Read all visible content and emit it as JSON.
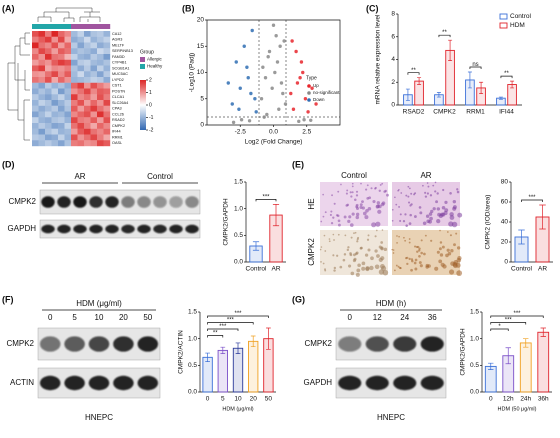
{
  "panels": [
    "(A)",
    "(B)",
    "(C)",
    "(D)",
    "(E)",
    "(F)",
    "(G)"
  ],
  "chart_data": [
    {
      "type": "heatmap",
      "rows": [
        "CA12",
        "AGR3",
        "MELTF",
        "SERPINB13",
        "FAM3D",
        "CYP4B1",
        "SCGB1A1",
        "MUC5AC",
        "LYPD2",
        "CST1",
        "POSTN",
        "CLCA1",
        "SLC26A4",
        "CPA3",
        "CCL26",
        "RSAD2",
        "CMPK2",
        "IFI44",
        "RRM1",
        "OASL"
      ],
      "values": [
        [
          1.6,
          1.9,
          1.2,
          2.0,
          1.4,
          1.1,
          -0.9,
          -0.6,
          -1.2,
          -0.8,
          -0.7,
          -1.0
        ],
        [
          1.2,
          1.5,
          1.8,
          1.0,
          1.7,
          0.8,
          -1.1,
          -0.9,
          -0.5,
          -1.0,
          -0.8,
          -0.6
        ],
        [
          2.0,
          1.3,
          1.1,
          1.6,
          0.9,
          1.4,
          -0.7,
          -1.2,
          -0.8,
          -0.6,
          -1.1,
          -0.9
        ],
        [
          1.1,
          1.7,
          1.4,
          0.9,
          1.5,
          1.3,
          -1.0,
          -0.8,
          -0.9,
          -1.1,
          -0.5,
          -0.7
        ],
        [
          1.4,
          1.0,
          1.9,
          1.3,
          1.2,
          0.7,
          -0.6,
          -1.0,
          -1.1,
          -0.7,
          -0.9,
          -1.3
        ],
        [
          0.9,
          1.2,
          1.0,
          1.5,
          1.8,
          1.6,
          -1.2,
          -0.7,
          -0.6,
          -0.9,
          -1.0,
          -0.8
        ],
        [
          1.5,
          1.8,
          0.8,
          1.1,
          1.0,
          1.2,
          -0.8,
          -1.1,
          -0.7,
          -1.2,
          -0.6,
          -1.0
        ],
        [
          1.0,
          0.9,
          1.3,
          1.7,
          1.1,
          1.5,
          -0.9,
          -0.5,
          -1.0,
          -0.8,
          -1.2,
          -0.7
        ],
        [
          1.3,
          1.1,
          1.6,
          0.8,
          1.4,
          1.0,
          -1.0,
          -0.9,
          -0.8,
          -0.6,
          -0.7,
          -1.1
        ],
        [
          -0.9,
          -1.2,
          -0.7,
          -1.0,
          -0.8,
          -1.1,
          1.4,
          1.8,
          1.0,
          1.6,
          1.2,
          0.9
        ],
        [
          -1.1,
          -0.8,
          -1.0,
          -0.6,
          -1.3,
          -0.9,
          1.0,
          1.3,
          1.7,
          1.1,
          1.5,
          1.4
        ],
        [
          -0.7,
          -1.0,
          -1.2,
          -0.9,
          -0.6,
          -1.0,
          1.8,
          1.1,
          1.3,
          0.9,
          1.6,
          1.2
        ],
        [
          -1.0,
          -0.6,
          -0.8,
          -1.3,
          -1.0,
          -0.7,
          1.2,
          1.6,
          0.9,
          1.4,
          1.0,
          1.7
        ],
        [
          -0.8,
          -1.1,
          -0.9,
          -0.7,
          -1.2,
          -0.8,
          1.5,
          0.9,
          1.4,
          1.8,
          1.3,
          1.0
        ],
        [
          -1.2,
          -0.9,
          -0.6,
          -1.0,
          -0.9,
          -1.2,
          1.1,
          1.4,
          1.6,
          1.0,
          1.9,
          1.3
        ],
        [
          -0.6,
          -1.0,
          -1.1,
          -0.8,
          -0.7,
          -1.0,
          1.7,
          1.2,
          1.1,
          1.5,
          0.9,
          1.6
        ],
        [
          -1.0,
          -0.7,
          -0.9,
          -1.2,
          -1.1,
          -0.6,
          1.3,
          1.7,
          1.2,
          0.8,
          1.4,
          1.1
        ],
        [
          -0.9,
          -1.3,
          -0.8,
          -0.6,
          -1.0,
          -0.9,
          0.9,
          1.5,
          1.8,
          1.3,
          1.1,
          1.4
        ],
        [
          -0.7,
          -0.8,
          -1.2,
          -1.1,
          -0.6,
          -1.0,
          1.6,
          1.0,
          1.3,
          1.7,
          1.2,
          0.8
        ],
        [
          -1.1,
          -0.9,
          -0.7,
          -0.9,
          -1.2,
          -0.8,
          1.2,
          1.3,
          1.0,
          1.1,
          1.7,
          1.5
        ]
      ],
      "column_groups": [
        1,
        1,
        1,
        1,
        1,
        1,
        0,
        0,
        0,
        0,
        0,
        0
      ],
      "legend_title": "Group",
      "groups": [
        {
          "name": "Allergic",
          "color": "#a0559f"
        },
        {
          "name": "Healthy",
          "color": "#22a6a8"
        }
      ],
      "clim": [
        -2,
        2
      ],
      "cticks": [
        2,
        1,
        0,
        -1,
        -2
      ]
    },
    {
      "type": "scatter",
      "xlabel": "Log2 (Fold Change)",
      "ylabel": "-Log10 (Padj)",
      "xlim": [
        -5,
        5
      ],
      "xticks": [
        -2.5,
        {
          "value": 0,
          "label": "0.0"
        },
        2.5
      ],
      "ylim": [
        0,
        20
      ],
      "yticks": [
        0,
        5,
        10,
        15,
        20
      ],
      "legend_title": "Type",
      "series": [
        {
          "name": "Up",
          "color": "#e8252b",
          "x": [
            1.5,
            1.8,
            2.1,
            2.4,
            2.9,
            1.4,
            2.2,
            3.2,
            1.7,
            2.6,
            1.3,
            2.0
          ],
          "y": [
            3,
            8,
            12,
            5,
            7,
            16,
            10,
            4,
            14,
            2.5,
            6,
            9
          ]
        },
        {
          "name": "no-significant",
          "color": "#888888",
          "x": [
            -0.9,
            -0.6,
            -0.3,
            0,
            0.3,
            0.6,
            0.9,
            -0.5,
            0.2,
            0.7,
            -0.8,
            0.4,
            -0.1,
            0.5,
            -2.4,
            2.3,
            -1.8,
            1.9,
            -3,
            2.8,
            -0.4,
            0.1,
            0.8,
            -0.7
          ],
          "y": [
            5,
            9,
            14,
            19,
            12,
            8,
            4,
            2,
            17,
            6,
            11,
            3,
            7,
            15,
            1,
            1,
            0.8,
            0.7,
            0.5,
            0.9,
            13,
            10,
            16,
            1.5
          ]
        },
        {
          "name": "Down",
          "color": "#2f6db3",
          "x": [
            -3.1,
            -2.8,
            -2.5,
            -2.2,
            -1.9,
            -1.6,
            -1.4,
            -2.0,
            -2.6,
            -1.7,
            -1.3,
            -3.4
          ],
          "y": [
            4,
            12,
            7,
            15,
            9,
            18,
            5,
            11,
            3,
            6,
            2.5,
            8
          ]
        }
      ]
    },
    {
      "type": "bar",
      "ylabel": "mRNA relative expression level",
      "categories": [
        "RSAD2",
        "CMPK2",
        "RRM1",
        "IFI44"
      ],
      "ylim": [
        0,
        8
      ],
      "yticks": [
        0,
        2,
        4,
        6,
        8
      ],
      "series": [
        {
          "name": "Control",
          "color": "#3a6fd8",
          "values": [
            0.9,
            0.9,
            2.2,
            0.6
          ],
          "errors": [
            0.5,
            0.2,
            0.7,
            0.1
          ]
        },
        {
          "name": "HDM",
          "color": "#e0232b",
          "values": [
            2.1,
            4.8,
            1.5,
            1.8
          ],
          "errors": [
            0.3,
            0.9,
            0.5,
            0.3
          ]
        }
      ],
      "annotations": [
        "**",
        "**",
        "ns",
        "**"
      ]
    },
    {
      "type": "bar",
      "ylabel": "CMPK2/GAPDH",
      "categories": [
        "Control",
        "AR"
      ],
      "values": [
        0.3,
        0.88
      ],
      "errors": [
        0.08,
        0.2
      ],
      "colors": [
        "#3a6fd8",
        "#e0232b"
      ],
      "ylim": [
        0,
        1.5
      ],
      "yticks": [
        {
          "value": 0,
          "label": "0.0"
        },
        0.5,
        {
          "value": 1,
          "label": "1.0"
        },
        1.5
      ],
      "annotations": [
        "***"
      ]
    },
    {
      "type": "bar",
      "ylabel": "CMPK2 (IOD/area)",
      "categories": [
        "Control",
        "AR"
      ],
      "values": [
        25,
        45
      ],
      "errors": [
        7,
        12
      ],
      "colors": [
        "#3a6fd8",
        "#e0232b"
      ],
      "ylim": [
        0,
        80
      ],
      "yticks": [
        0,
        20,
        40,
        60,
        80
      ],
      "annotations": [
        "***"
      ]
    },
    {
      "type": "bar",
      "ylabel": "CMPK2/ACTIN",
      "xlabel": "HDM (μg/ml)",
      "categories": [
        "0",
        "5",
        "10",
        "20",
        "50"
      ],
      "values": [
        0.65,
        0.78,
        0.82,
        0.95,
        1.0
      ],
      "errors": [
        0.08,
        0.06,
        0.1,
        0.1,
        0.2
      ],
      "colors": [
        "#3a6fd8",
        "#7b4fc9",
        "#2a3a9a",
        "#f0a020",
        "#e0232b"
      ],
      "ylim": [
        0,
        1.5
      ],
      "yticks": [
        {
          "value": 0,
          "label": "0.0"
        },
        0.5,
        {
          "value": 1,
          "label": "1.0"
        },
        1.5
      ],
      "annotations": [
        "**",
        "***",
        "***",
        "***"
      ]
    },
    {
      "type": "bar",
      "ylabel": "CMPK2/GAPDH",
      "xlabel": "HDM (50 μg/ml)",
      "categories": [
        "0",
        "12h",
        "24h",
        "36h"
      ],
      "values": [
        0.48,
        0.68,
        0.92,
        1.12
      ],
      "errors": [
        0.06,
        0.15,
        0.08,
        0.08
      ],
      "colors": [
        "#3a6fd8",
        "#7b4fc9",
        "#f0a020",
        "#e0232b"
      ],
      "ylim": [
        0,
        1.5
      ],
      "yticks": [
        {
          "value": 0,
          "label": "0.0"
        },
        0.5,
        {
          "value": 1,
          "label": "1.0"
        },
        1.5
      ],
      "annotations": [
        "*",
        "***",
        "***"
      ]
    }
  ],
  "blots": {
    "d": {
      "groups": [
        "AR",
        "Control"
      ],
      "rows": [
        "CMPK2",
        "GAPDH"
      ]
    },
    "f": {
      "title": "HDM (μg/ml)",
      "lanes": [
        "0",
        "5",
        "10",
        "20",
        "50"
      ],
      "rows": [
        "CMPK2",
        "ACTIN"
      ],
      "cell": "HNEPC"
    },
    "g": {
      "title": "HDM (h)",
      "lanes": [
        "0",
        "12",
        "24",
        "36"
      ],
      "rows": [
        "CMPK2",
        "GAPDH"
      ],
      "cell": "HNEPC"
    }
  },
  "histology": {
    "columns": [
      "Control",
      "AR"
    ],
    "rows": [
      "HE",
      "CMPK2"
    ]
  }
}
